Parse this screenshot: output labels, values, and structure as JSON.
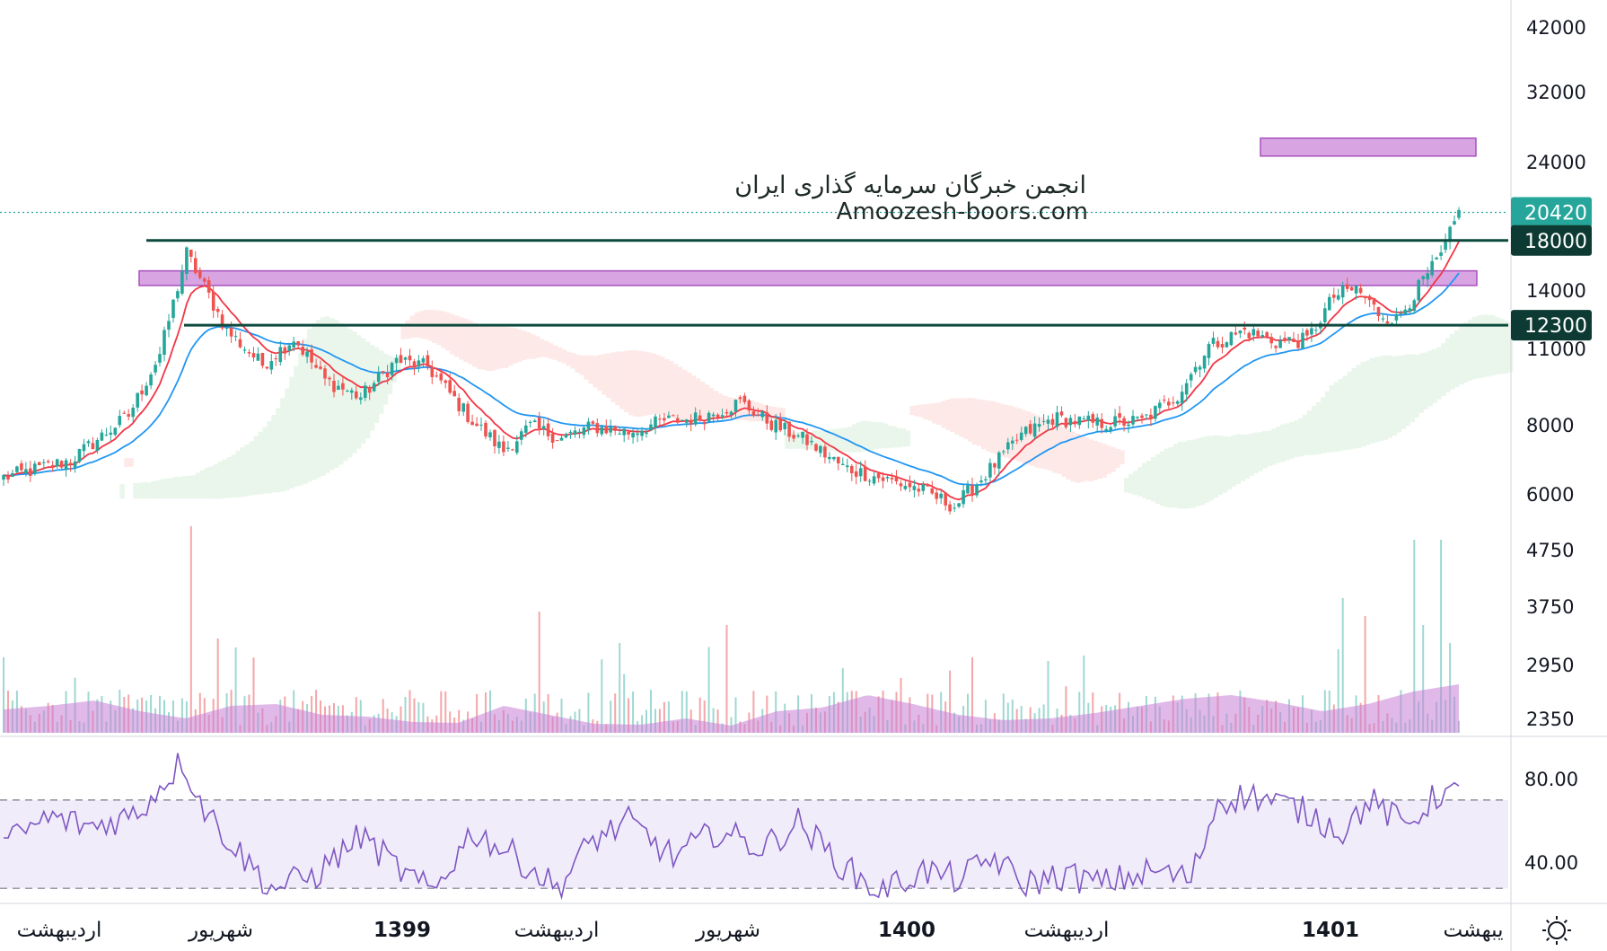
{
  "chart_data": {
    "type": "candlestick",
    "title": "",
    "watermark": {
      "line1": "انجمن خبرگان سرمایه گذاری ایران",
      "line2": "Amoozesh-boors.com"
    },
    "price_scale": {
      "type": "log",
      "range": [
        2100,
        47000
      ],
      "ticks": [
        42000,
        32000,
        24000,
        14000,
        11000,
        8000,
        6000,
        4750,
        3750,
        2950,
        2350
      ]
    },
    "time_axis": {
      "labels": [
        "اردیبهشت",
        "شهریور",
        "1399",
        "اردیبهشت",
        "شهریور",
        "1400",
        "اردیبهشت",
        "1401",
        "یبهشت"
      ],
      "year_labels": [
        "1399",
        "1400",
        "1401"
      ]
    },
    "last_price": {
      "value": 20420,
      "color": "#26a69a"
    },
    "horizontal_levels": [
      {
        "value": 18000,
        "label": "18000",
        "color": "#0d4a3e"
      },
      {
        "value": 12300,
        "label": "12300",
        "color": "#0d4a3e"
      }
    ],
    "zones": [
      {
        "low": 14700,
        "high": 15700,
        "color": "#c77fd6",
        "note": "support/resistance band"
      },
      {
        "low": 26300,
        "high": 28500,
        "color": "#c77fd6",
        "note": "target band"
      }
    ],
    "candles_close_anchors": [
      {
        "i": 0,
        "v": 6200
      },
      {
        "i": 15,
        "v": 6700
      },
      {
        "i": 28,
        "v": 8200
      },
      {
        "i": 35,
        "v": 10800
      },
      {
        "i": 41,
        "v": 17000
      },
      {
        "i": 45,
        "v": 14600
      },
      {
        "i": 50,
        "v": 12000
      },
      {
        "i": 58,
        "v": 10300
      },
      {
        "i": 65,
        "v": 11600
      },
      {
        "i": 72,
        "v": 9600
      },
      {
        "i": 80,
        "v": 8900
      },
      {
        "i": 88,
        "v": 10500
      },
      {
        "i": 95,
        "v": 10200
      },
      {
        "i": 105,
        "v": 8000
      },
      {
        "i": 112,
        "v": 7000
      },
      {
        "i": 118,
        "v": 7800
      },
      {
        "i": 125,
        "v": 7400
      },
      {
        "i": 132,
        "v": 7800
      },
      {
        "i": 140,
        "v": 7600
      },
      {
        "i": 148,
        "v": 8000
      },
      {
        "i": 156,
        "v": 8100
      },
      {
        "i": 165,
        "v": 8700
      },
      {
        "i": 172,
        "v": 7900
      },
      {
        "i": 180,
        "v": 7300
      },
      {
        "i": 188,
        "v": 6500
      },
      {
        "i": 196,
        "v": 6200
      },
      {
        "i": 205,
        "v": 5900
      },
      {
        "i": 213,
        "v": 5450
      },
      {
        "i": 220,
        "v": 6300
      },
      {
        "i": 228,
        "v": 7500
      },
      {
        "i": 235,
        "v": 8100
      },
      {
        "i": 245,
        "v": 7900
      },
      {
        "i": 255,
        "v": 8000
      },
      {
        "i": 263,
        "v": 9000
      },
      {
        "i": 270,
        "v": 11200
      },
      {
        "i": 278,
        "v": 12000
      },
      {
        "i": 285,
        "v": 11400
      },
      {
        "i": 292,
        "v": 11500
      },
      {
        "i": 298,
        "v": 14000
      },
      {
        "i": 303,
        "v": 14500
      },
      {
        "i": 308,
        "v": 13000
      },
      {
        "i": 312,
        "v": 12600
      },
      {
        "i": 318,
        "v": 15000
      },
      {
        "i": 322,
        "v": 16800
      },
      {
        "i": 326,
        "v": 20400
      }
    ],
    "indicators": [
      {
        "name": "EMA fast",
        "color": "#f23645"
      },
      {
        "name": "EMA slow",
        "color": "#2196f3"
      },
      {
        "name": "Cloud",
        "colors": [
          "#e9f5e9",
          "#fde9e7"
        ]
      },
      {
        "name": "Volume",
        "color": "#c77fd6"
      }
    ],
    "rsi": {
      "range": [
        24,
        98
      ],
      "ticks": [
        80.0,
        40.0
      ],
      "bands": [
        70,
        30
      ],
      "line_color": "#7e57c2",
      "band_fill": "#f1ecfa"
    }
  }
}
